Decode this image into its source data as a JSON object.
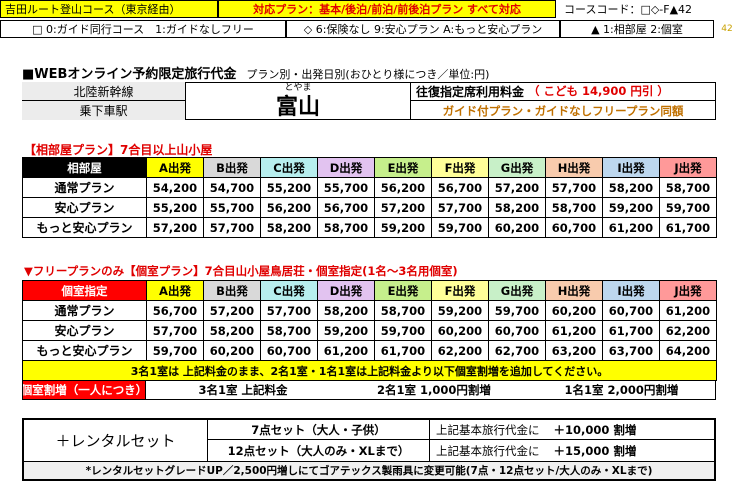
{
  "top": {
    "route": "吉田ルート登山コース（東京経由）",
    "plans": "対応プラン：基本/後泊/前泊/前後泊プラン すべて対応",
    "course_code": "コースコード：□◇-F▲42",
    "page_num": "42",
    "opt1": "□ 0:ガイド同行コース　1:ガイドなしフリー",
    "opt2": "◇ 6:保険なし 9:安心プラン A:もっと安心プラン",
    "opt3": "▲ 1:相部屋 2:個室"
  },
  "section": {
    "title": "■WEBオンライン予約限定旅行代金",
    "subtitle": "プラン別・出発日別(おひとり様につき／単位:円)"
  },
  "station": {
    "line": "北陸新幹線",
    "board_label": "乗下車駅",
    "reading": "とやま",
    "name": "富山",
    "fare_label": "往復指定席利用料金",
    "child_fare": "（ こども  14,900  円引 ）",
    "note": "ガイド付プラン・ガイドなしフリープラン同額"
  },
  "colors": {
    "A": "#ffff00",
    "B": "#d9d9d9",
    "C": "#b7eeee",
    "D": "#e2c3f0",
    "E": "#c6ef8c",
    "F": "#ffff99",
    "G": "#c8f0c8",
    "H": "#f8cbad",
    "I": "#bdd7ee",
    "J": "#ff9999",
    "shared_header": "#000000",
    "private_header": "#ff0000"
  },
  "shared": {
    "heading": "【相部屋プラン】7合目以上山小屋",
    "corner": "相部屋",
    "cols": [
      "A出発",
      "B出発",
      "C出発",
      "D出発",
      "E出発",
      "F出発",
      "G出発",
      "H出発",
      "I出発",
      "J出発"
    ],
    "rows": [
      {
        "label": "通常プラン",
        "vals": [
          "54,200",
          "54,700",
          "55,200",
          "55,700",
          "56,200",
          "56,700",
          "57,200",
          "57,700",
          "58,200",
          "58,700"
        ]
      },
      {
        "label": "安心プラン",
        "vals": [
          "55,200",
          "55,700",
          "56,200",
          "56,700",
          "57,200",
          "57,700",
          "58,200",
          "58,700",
          "59,200",
          "59,700"
        ]
      },
      {
        "label": "もっと安心プラン",
        "vals": [
          "57,200",
          "57,700",
          "58,200",
          "58,700",
          "59,200",
          "59,700",
          "60,200",
          "60,700",
          "61,200",
          "61,700"
        ]
      }
    ]
  },
  "private": {
    "heading": "▼フリープランのみ【個室プラン】7合目山小屋鳥居荘・個室指定(1名～3名用個室)",
    "corner": "個室指定",
    "cols": [
      "A出発",
      "B出発",
      "C出発",
      "D出発",
      "E出発",
      "F出発",
      "G出発",
      "H出発",
      "I出発",
      "J出発"
    ],
    "rows": [
      {
        "label": "通常プラン",
        "vals": [
          "56,700",
          "57,200",
          "57,700",
          "58,200",
          "58,700",
          "59,200",
          "59,700",
          "60,200",
          "60,700",
          "61,200"
        ]
      },
      {
        "label": "安心プラン",
        "vals": [
          "57,700",
          "58,200",
          "58,700",
          "59,200",
          "59,700",
          "60,200",
          "60,700",
          "61,200",
          "61,700",
          "62,200"
        ]
      },
      {
        "label": "もっと安心プラン",
        "vals": [
          "59,700",
          "60,200",
          "60,700",
          "61,200",
          "61,700",
          "62,200",
          "62,700",
          "63,200",
          "63,700",
          "64,200"
        ]
      }
    ],
    "note": "3名1室は 上記料金のまま、2名1室・1名1室は上記料金より以下個室割増を追加してください。",
    "surcharge_label": "個室割増（一人につき）",
    "sur1": "3名1室 上記料金",
    "sur2": "2名1室 1,000円割増",
    "sur3": "1名1室 2,000円割増"
  },
  "rental": {
    "label": "＋レンタルセット",
    "row1_name": "7点セット（大人・子供）",
    "row1_desc": "上記基本旅行代金に",
    "row1_amt": "＋10,000 割増",
    "row2_name": "12点セット（大人のみ・XLまで）",
    "row2_desc": "上記基本旅行代金に",
    "row2_amt": "＋15,000 割増",
    "note": "*レンタルセットグレードUP／2,500円増しにてゴアテックス製雨具に変更可能(7点・12点セット/大人のみ・XLまで)"
  }
}
